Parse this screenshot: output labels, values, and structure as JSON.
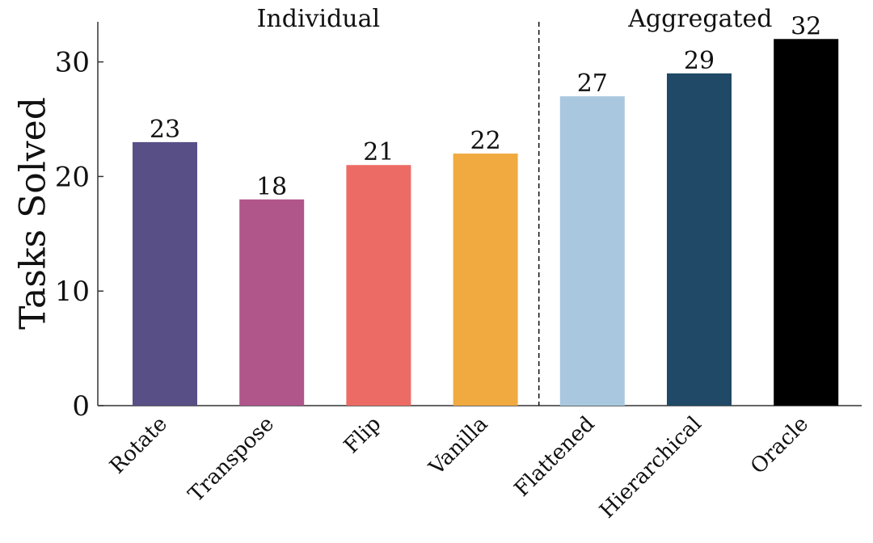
{
  "chart_data": {
    "type": "bar",
    "ylabel": "Tasks Solved",
    "group_labels": [
      "Individual",
      "Aggregated"
    ],
    "categories": [
      "Rotate",
      "Transpose",
      "Flip",
      "Vanilla",
      "Flattened",
      "Hierarchical",
      "Oracle"
    ],
    "values": [
      23,
      18,
      21,
      22,
      27,
      29,
      32
    ],
    "colors": [
      "#574f86",
      "#b0568a",
      "#ec6c65",
      "#f0aa3f",
      "#a9c8e0",
      "#1f4966",
      "#000000"
    ],
    "ylim": [
      0,
      33.5
    ],
    "yticks": [
      0,
      10,
      20,
      30
    ],
    "grid": false
  }
}
